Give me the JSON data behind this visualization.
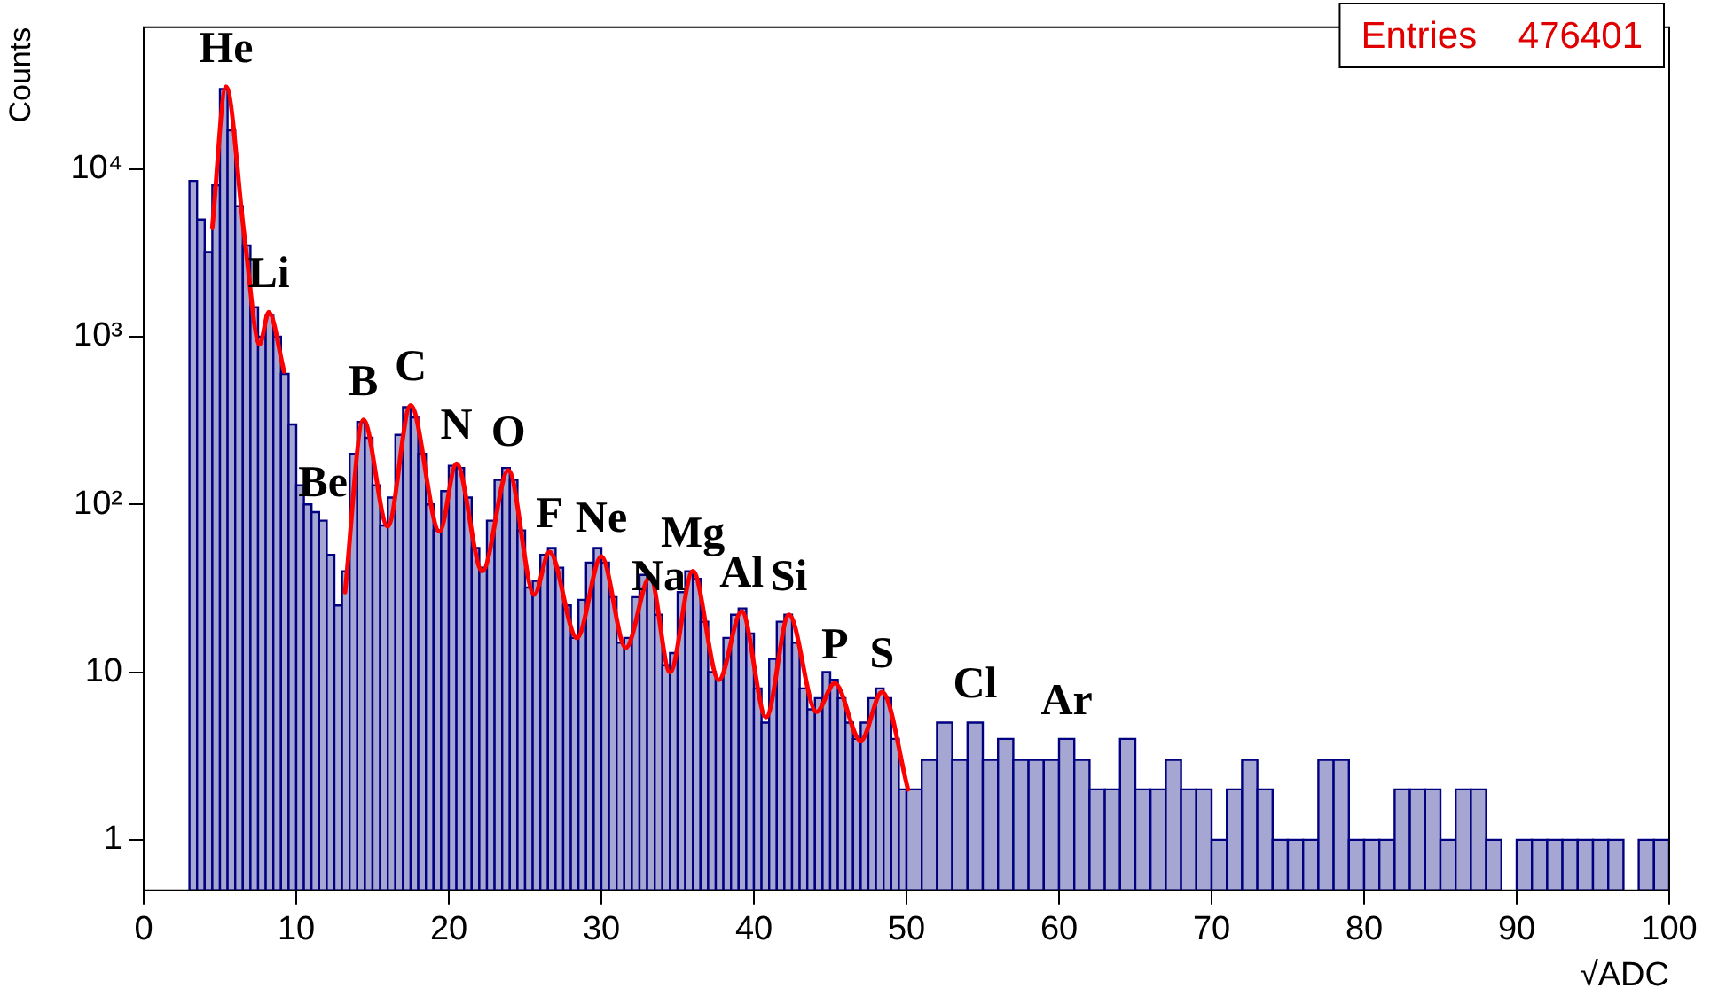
{
  "chart_data": {
    "type": "histogram",
    "xlabel": "√ADC",
    "ylabel": "Counts",
    "log": "y",
    "grid": false,
    "legend": false,
    "color": "#a6a6d2",
    "bins": [
      3,
      3.5,
      4,
      4.5,
      5,
      5.5,
      6,
      6.5,
      7,
      7.5,
      8,
      8.5,
      9,
      9.5,
      10,
      10.5,
      11,
      11.5,
      12,
      12.5,
      13,
      13.5,
      14,
      14.5,
      15,
      15.5,
      16,
      16.5,
      17,
      17.5,
      18,
      18.5,
      19,
      19.5,
      20,
      20.5,
      21,
      21.5,
      22,
      22.5,
      23,
      23.5,
      24,
      24.5,
      25,
      25.5,
      26,
      26.5,
      27,
      27.5,
      28,
      28.5,
      29,
      29.5,
      30,
      30.5,
      31,
      31.5,
      32,
      32.5,
      33,
      33.5,
      34,
      34.5,
      35,
      35.5,
      36,
      36.5,
      37,
      37.5,
      38,
      38.5,
      39,
      39.5,
      40,
      40.5,
      41,
      41.5,
      42,
      42.5,
      43,
      43.5,
      44,
      44.5,
      45,
      45.5,
      46,
      46.5,
      47,
      47.5,
      48,
      48.5,
      49,
      49.5,
      50,
      51,
      52,
      53,
      54,
      55,
      56,
      57,
      58,
      59,
      60,
      61,
      62,
      63,
      64,
      65,
      66,
      67,
      68,
      69,
      70,
      71,
      72,
      73,
      74,
      75,
      76,
      77,
      78,
      79,
      80,
      81,
      82,
      83,
      84,
      85,
      86,
      87,
      88,
      89,
      90,
      91,
      92,
      93,
      94,
      95,
      96,
      97,
      98,
      99,
      100
    ],
    "values": [
      8500,
      5000,
      3200,
      8000,
      30000,
      17000,
      6000,
      3500,
      1500,
      1000,
      1350,
      1000,
      600,
      300,
      130,
      100,
      90,
      80,
      50,
      25,
      40,
      200,
      310,
      250,
      130,
      75,
      110,
      260,
      380,
      330,
      200,
      100,
      70,
      120,
      170,
      165,
      110,
      55,
      42,
      80,
      140,
      165,
      140,
      70,
      32,
      35,
      50,
      55,
      42,
      25,
      16,
      27,
      45,
      55,
      45,
      28,
      15,
      16,
      28,
      38,
      36,
      22,
      11,
      13,
      30,
      40,
      36,
      20,
      10,
      9,
      16,
      22,
      24,
      17,
      8,
      5,
      12,
      20,
      22,
      15,
      8,
      6,
      7,
      10,
      9,
      7,
      5,
      4,
      5,
      7,
      8,
      7,
      4,
      2,
      2,
      3,
      5,
      3,
      5,
      3,
      4,
      3,
      3,
      3,
      4,
      3,
      2,
      2,
      4,
      2,
      2,
      3,
      2,
      2,
      1,
      2,
      3,
      2,
      1,
      1,
      1,
      3,
      3,
      1,
      1,
      1,
      2,
      2,
      2,
      1,
      2,
      2,
      1,
      null,
      1,
      1,
      1,
      1,
      1,
      1,
      1,
      null,
      1,
      1
    ],
    "series": [
      {
        "type": "line",
        "color": "#ff0000",
        "x": [
          4.5,
          5.4,
          6.6,
          7.6,
          8.2,
          9.2,
          11,
          13.2,
          14.4,
          16.0,
          17.5,
          19.4,
          20.5,
          22.2,
          23.9,
          25.6,
          26.6,
          28.4,
          30,
          31.6,
          33.2,
          34.5,
          36,
          37.7,
          39.2,
          40.8,
          42.3,
          44.1,
          45.3,
          47,
          48.4,
          50.1
        ],
        "values": [
          4500,
          31000,
          4000,
          900,
          1400,
          620,
          null,
          30,
          320,
          74,
          390,
          69,
          175,
          40,
          160,
          29,
          52,
          16,
          49,
          14,
          37,
          10,
          40,
          9,
          23,
          5.4,
          22,
          5.8,
          8.6,
          3.9,
          7.6,
          2
        ]
      }
    ],
    "xlim": [
      0,
      100
    ],
    "xticks": [
      0,
      10,
      20,
      30,
      40,
      50,
      60,
      70,
      80,
      90,
      100
    ],
    "ylim": [
      0.5,
      70000
    ],
    "yticks": [
      {
        "value": 1,
        "label": "1"
      },
      {
        "value": 10,
        "label": "10"
      },
      {
        "value": 100,
        "label": "10²"
      },
      {
        "value": 1000,
        "label": "10³"
      },
      {
        "value": 10000,
        "label": "10⁴"
      }
    ],
    "annotations": [
      {
        "text": "He",
        "x": 5.4,
        "y": 31000
      },
      {
        "text": "Li",
        "x": 8.2,
        "y": 1400
      },
      {
        "text": "B",
        "x": 14.4,
        "y": 320
      },
      {
        "text": "Be",
        "x": 11.75,
        "y": 80
      },
      {
        "text": "C",
        "x": 17.5,
        "y": 390
      },
      {
        "text": "N",
        "x": 20.5,
        "y": 175
      },
      {
        "text": "O",
        "x": 23.9,
        "y": 160
      },
      {
        "text": "F",
        "x": 26.6,
        "y": 52
      },
      {
        "text": "Ne",
        "x": 30,
        "y": 49
      },
      {
        "text": "Na",
        "x": 33.75,
        "y": 22
      },
      {
        "text": "Mg",
        "x": 36,
        "y": 40
      },
      {
        "text": "Al",
        "x": 39.2,
        "y": 23
      },
      {
        "text": "Si",
        "x": 42.3,
        "y": 22
      },
      {
        "text": "P",
        "x": 45.3,
        "y": 8.6
      },
      {
        "text": "S",
        "x": 48.4,
        "y": 7.6
      },
      {
        "text": "Cl",
        "x": 54.5,
        "y": 5
      },
      {
        "text": "Ar",
        "x": 60.5,
        "y": 4
      },
      "Entries    476401"
    ]
  }
}
